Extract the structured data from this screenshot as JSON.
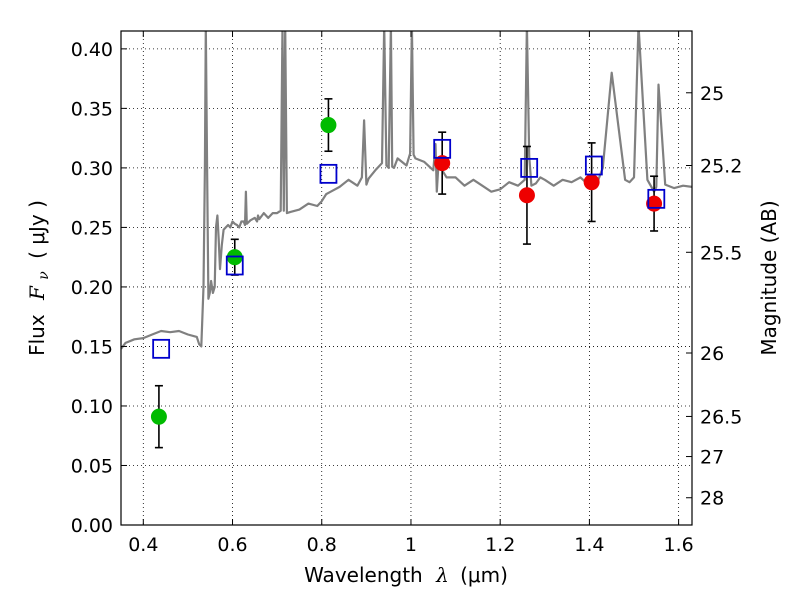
{
  "chart_data": {
    "type": "scatter",
    "xlabel_prefix": "Wavelength",
    "xlabel_symbol": "λ",
    "xlabel_unit": "(μm)",
    "ylabel_prefix": "Flux",
    "ylabel_symbol": "F",
    "ylabel_subscript": "ν",
    "ylabel_unit": "( μJy )",
    "y2label": "Magnitude (AB)",
    "xlim": [
      0.35,
      1.63
    ],
    "ylim": [
      0.0,
      0.415
    ],
    "grid": true,
    "x_ticks": [
      0.4,
      0.6,
      0.8,
      1.0,
      1.2,
      1.4,
      1.6
    ],
    "x_tick_labels": [
      "0.4",
      "0.6",
      "0.8",
      "1",
      "1.2",
      "1.4",
      "1.6"
    ],
    "y_ticks": [
      0.0,
      0.05,
      0.1,
      0.15,
      0.2,
      0.25,
      0.3,
      0.35,
      0.4
    ],
    "y_tick_labels": [
      "0.00",
      "0.05",
      "0.10",
      "0.15",
      "0.20",
      "0.25",
      "0.30",
      "0.35",
      "0.40"
    ],
    "y2_ticks": [
      {
        "label": "25",
        "flux": 0.3631
      },
      {
        "label": "25.2",
        "flux": 0.302
      },
      {
        "label": "25.5",
        "flux": 0.2291
      },
      {
        "label": "26",
        "flux": 0.1445
      },
      {
        "label": "26.5",
        "flux": 0.0912
      },
      {
        "label": "27",
        "flux": 0.0575
      },
      {
        "label": "28",
        "flux": 0.0229
      }
    ],
    "colors": {
      "model": "#808080",
      "green": "#00bb00",
      "red": "#ee0000",
      "square": "#0000cc",
      "errorbar": "#000000"
    },
    "model_spectrum": {
      "x": [
        0.35,
        0.36,
        0.38,
        0.4,
        0.42,
        0.44,
        0.46,
        0.48,
        0.5,
        0.52,
        0.525,
        0.53,
        0.535,
        0.538,
        0.54,
        0.543,
        0.546,
        0.549,
        0.552,
        0.556,
        0.56,
        0.563,
        0.566,
        0.569,
        0.572,
        0.576,
        0.58,
        0.585,
        0.59,
        0.595,
        0.6,
        0.605,
        0.61,
        0.615,
        0.62,
        0.625,
        0.628,
        0.63,
        0.632,
        0.635,
        0.64,
        0.65,
        0.655,
        0.657,
        0.66,
        0.67,
        0.68,
        0.69,
        0.7,
        0.708,
        0.712,
        0.715,
        0.718,
        0.722,
        0.73,
        0.75,
        0.77,
        0.79,
        0.8,
        0.81,
        0.82,
        0.84,
        0.86,
        0.88,
        0.89,
        0.895,
        0.9,
        0.905,
        0.92,
        0.935,
        0.94,
        0.945,
        0.95,
        0.955,
        0.958,
        0.962,
        0.97,
        0.99,
        0.998,
        1.002,
        1.006,
        1.01,
        1.03,
        1.05,
        1.055,
        1.058,
        1.062,
        1.07,
        1.08,
        1.1,
        1.12,
        1.14,
        1.16,
        1.18,
        1.2,
        1.22,
        1.24,
        1.255,
        1.26,
        1.265,
        1.27,
        1.28,
        1.29,
        1.3,
        1.32,
        1.34,
        1.36,
        1.38,
        1.4,
        1.42,
        1.43,
        1.45,
        1.48,
        1.49,
        1.5,
        1.51,
        1.53,
        1.545,
        1.55,
        1.555,
        1.57,
        1.59,
        1.61,
        1.63
      ],
      "y": [
        0.148,
        0.153,
        0.156,
        0.157,
        0.16,
        0.163,
        0.162,
        0.163,
        0.16,
        0.158,
        0.152,
        0.15,
        0.2,
        0.3,
        0.42,
        0.3,
        0.19,
        0.195,
        0.205,
        0.195,
        0.2,
        0.25,
        0.26,
        0.24,
        0.215,
        0.235,
        0.248,
        0.25,
        0.252,
        0.25,
        0.255,
        0.253,
        0.252,
        0.25,
        0.255,
        0.255,
        0.252,
        0.28,
        0.253,
        0.254,
        0.256,
        0.258,
        0.255,
        0.26,
        0.257,
        0.262,
        0.258,
        0.262,
        0.262,
        0.264,
        0.42,
        0.264,
        0.42,
        0.262,
        0.263,
        0.265,
        0.27,
        0.268,
        0.272,
        0.278,
        0.28,
        0.284,
        0.29,
        0.285,
        0.292,
        0.34,
        0.286,
        0.291,
        0.298,
        0.304,
        0.42,
        0.302,
        0.3,
        0.42,
        0.301,
        0.3,
        0.308,
        0.302,
        0.312,
        0.42,
        0.311,
        0.308,
        0.305,
        0.298,
        0.32,
        0.28,
        0.305,
        0.298,
        0.292,
        0.292,
        0.285,
        0.29,
        0.285,
        0.28,
        0.282,
        0.288,
        0.285,
        0.29,
        0.42,
        0.31,
        0.285,
        0.287,
        0.292,
        0.29,
        0.285,
        0.29,
        0.288,
        0.292,
        0.285,
        0.29,
        0.3,
        0.38,
        0.29,
        0.288,
        0.292,
        0.42,
        0.29,
        0.28,
        0.284,
        0.37,
        0.286,
        0.283,
        0.285,
        0.284
      ]
    },
    "series": [
      {
        "name": "green_points",
        "marker": "circle",
        "color_key": "green",
        "points": [
          {
            "x": 0.435,
            "y": 0.091,
            "err": 0.026
          },
          {
            "x": 0.605,
            "y": 0.225,
            "err": 0.015
          },
          {
            "x": 0.815,
            "y": 0.336,
            "err": 0.022
          }
        ]
      },
      {
        "name": "red_points",
        "marker": "circle",
        "color_key": "red",
        "points": [
          {
            "x": 1.07,
            "y": 0.304,
            "err": 0.026
          },
          {
            "x": 1.26,
            "y": 0.277,
            "err": 0.041
          },
          {
            "x": 1.405,
            "y": 0.288,
            "err": 0.033
          },
          {
            "x": 1.545,
            "y": 0.27,
            "err": 0.023
          }
        ]
      },
      {
        "name": "model_photometry",
        "marker": "square",
        "color_key": "square",
        "points": [
          {
            "x": 0.44,
            "y": 0.148
          },
          {
            "x": 0.605,
            "y": 0.218
          },
          {
            "x": 0.815,
            "y": 0.295
          },
          {
            "x": 1.07,
            "y": 0.316
          },
          {
            "x": 1.265,
            "y": 0.3
          },
          {
            "x": 1.41,
            "y": 0.302
          },
          {
            "x": 1.55,
            "y": 0.274
          }
        ]
      }
    ]
  }
}
